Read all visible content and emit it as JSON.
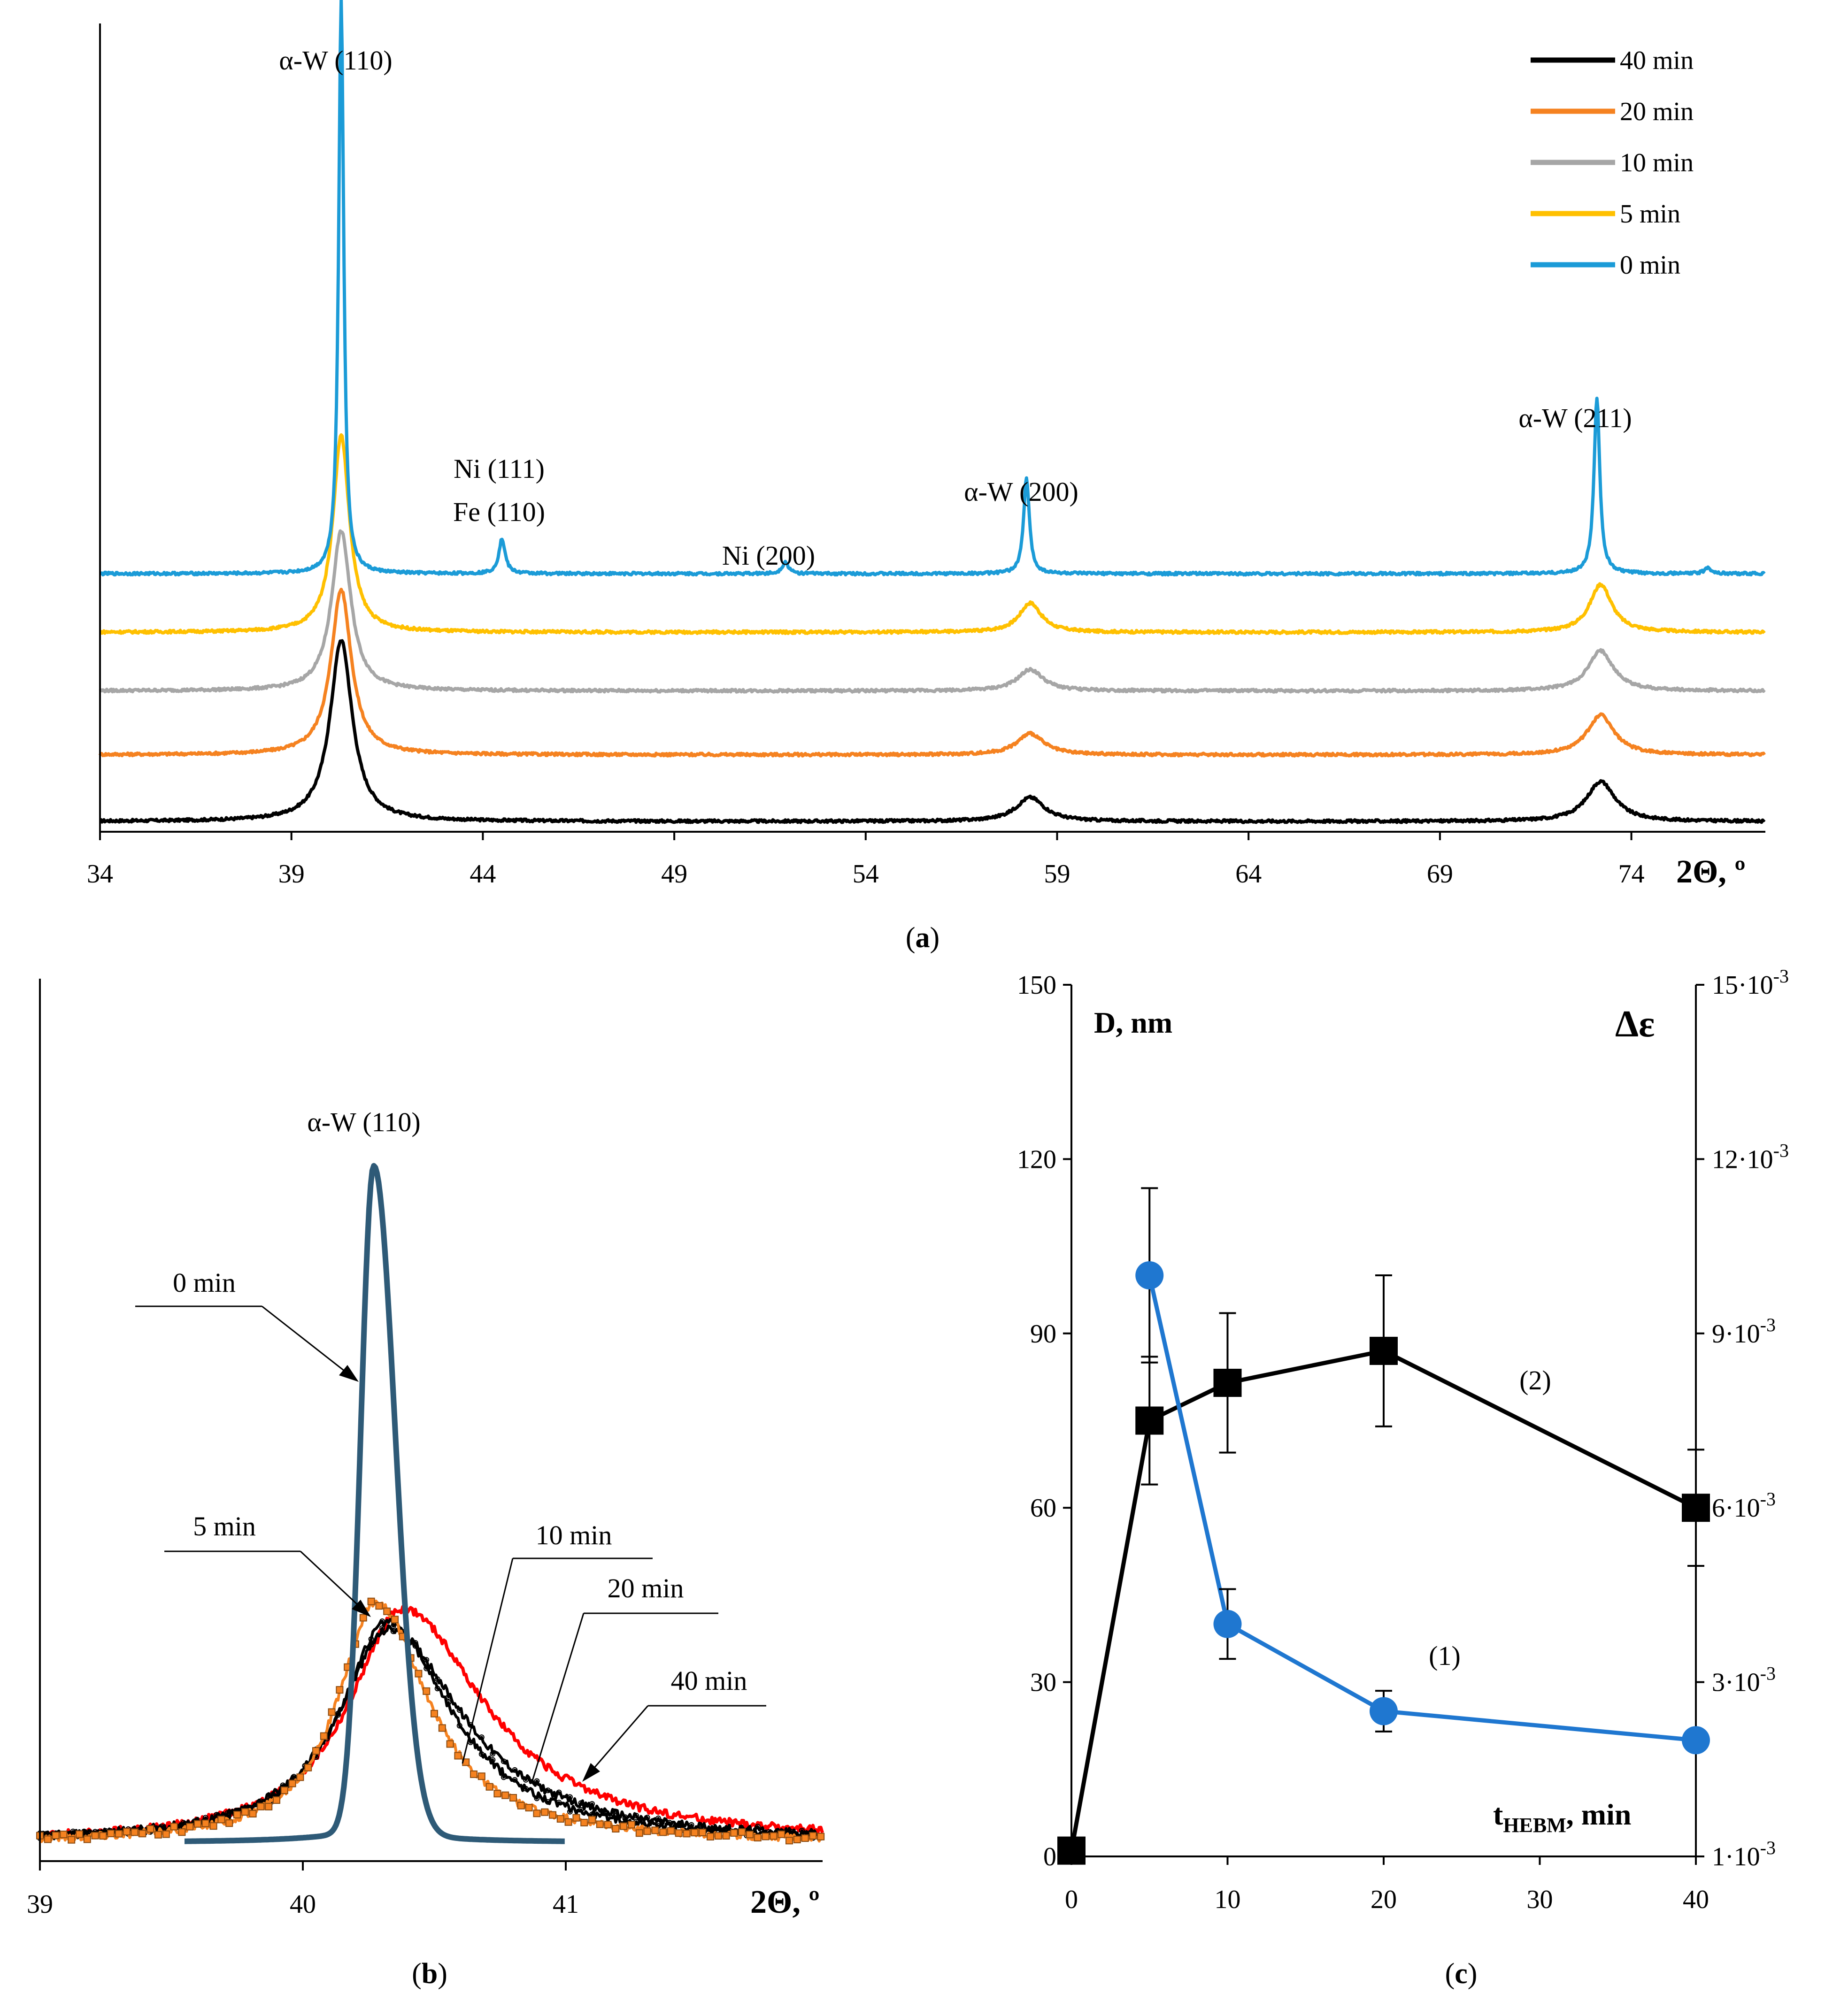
{
  "chart_data": [
    {
      "id": "a",
      "type": "line",
      "caption": "(a)",
      "xlabel": "2Θ, º",
      "xlim": [
        34,
        77.5
      ],
      "x_ticks": [
        "34",
        "39",
        "44",
        "49",
        "54",
        "59",
        "64",
        "69",
        "74"
      ],
      "y_axis": "stacked offsets, no ticks",
      "legend": [
        "40 min",
        "20 min",
        "10 min",
        "5 min",
        "0 min"
      ],
      "legend_position": "top-right",
      "series": [
        {
          "name": "40 min",
          "color": "#000000",
          "baseline": 0.0,
          "peaks": [
            [
              40.3,
              3.4,
              0.35
            ],
            [
              58.3,
              0.45,
              0.45
            ],
            [
              73.2,
              0.75,
              0.45
            ]
          ]
        },
        {
          "name": "20 min",
          "color": "#f58220",
          "baseline": 1.25,
          "peaks": [
            [
              40.3,
              3.1,
              0.32
            ],
            [
              58.3,
              0.4,
              0.42
            ],
            [
              73.2,
              0.75,
              0.42
            ]
          ]
        },
        {
          "name": "10 min",
          "color": "#a6a6a6",
          "baseline": 2.45,
          "peaks": [
            [
              40.3,
              3.0,
              0.3
            ],
            [
              58.3,
              0.4,
              0.4
            ],
            [
              73.2,
              0.75,
              0.4
            ]
          ]
        },
        {
          "name": "5 min",
          "color": "#ffc000",
          "baseline": 3.55,
          "peaks": [
            [
              40.3,
              3.7,
              0.26
            ],
            [
              58.3,
              0.55,
              0.35
            ],
            [
              73.2,
              0.9,
              0.35
            ]
          ]
        },
        {
          "name": "0 min",
          "color": "#1b9bd7",
          "baseline": 4.65,
          "peaks": [
            [
              40.3,
              10.8,
              0.08
            ],
            [
              44.5,
              0.65,
              0.1
            ],
            [
              51.9,
              0.22,
              0.1
            ],
            [
              58.2,
              1.8,
              0.09
            ],
            [
              73.1,
              3.3,
              0.09
            ],
            [
              76.0,
              0.12,
              0.1
            ]
          ]
        }
      ],
      "annotations": [
        "α-W (110)",
        "Ni (111)",
        "Fe (110)",
        "Ni (200)",
        "α-W (200)",
        "α-W (211)"
      ]
    },
    {
      "id": "b",
      "type": "line",
      "caption": "(b)",
      "xlabel": "2Θ, º",
      "xlim": [
        39,
        42
      ],
      "x_ticks": [
        "39",
        "40",
        "41"
      ],
      "peak_label": "α-W (110)",
      "series": [
        {
          "name": "0 min",
          "color": "#2e5a77",
          "x_range": [
            39.55,
            41.0
          ],
          "peak_x": 40.27,
          "height": 1.0,
          "hwhm_left": 0.055,
          "hwhm_right": 0.09
        },
        {
          "name": "5 min",
          "color": "#f58220",
          "marker": "square",
          "x_range": [
            39,
            42
          ],
          "peak_x": 40.28,
          "height": 0.36,
          "hwhm_left": 0.18,
          "hwhm_right": 0.24
        },
        {
          "name": "10 min",
          "color": "#000000",
          "x_range": [
            39,
            42
          ],
          "peak_x": 40.32,
          "height": 0.33,
          "hwhm_left": 0.22,
          "hwhm_right": 0.3
        },
        {
          "name": "20 min",
          "color": "#000000",
          "x_range": [
            39,
            42
          ],
          "peak_x": 40.33,
          "height": 0.32,
          "hwhm_left": 0.24,
          "hwhm_right": 0.34
        },
        {
          "name": "40 min",
          "color": "#ff0000",
          "x_range": [
            39,
            42
          ],
          "peak_x": 40.38,
          "height": 0.35,
          "hwhm_left": 0.25,
          "hwhm_right": 0.38
        }
      ],
      "labels": [
        "0 min",
        "5 min",
        "10 min",
        "20 min",
        "40 min"
      ]
    },
    {
      "id": "c",
      "type": "scatter",
      "caption": "(c)",
      "xlabel_main": "t",
      "xlabel_sub": "HEBM",
      "xlabel_rest": ", min",
      "ylabel_left": "D, nm",
      "ylabel_right": "Δε",
      "xlim": [
        0,
        40
      ],
      "ylim_left": [
        0,
        150
      ],
      "x_ticks": [
        "0",
        "10",
        "20",
        "30",
        "40"
      ],
      "y_ticks_left": [
        "0",
        "30",
        "60",
        "90",
        "120",
        "150"
      ],
      "y_ticks_right": [
        "1·10",
        "3·10",
        "6·10",
        "9·10",
        "12·10",
        "15·10"
      ],
      "y_ticks_right_exp": "-3",
      "series": [
        {
          "name": "(1)",
          "axis": "left",
          "color": "#1f77d0",
          "marker": "circle",
          "x": [
            5,
            10,
            20,
            40
          ],
          "y": [
            100,
            40,
            25,
            20
          ],
          "err": [
            15,
            6,
            3.5,
            0
          ]
        },
        {
          "name": "(2)",
          "axis": "right",
          "color": "#000000",
          "marker": "square",
          "x": [
            0,
            5,
            10,
            20,
            40
          ],
          "y": [
            1,
            75,
            81.5,
            87,
            60
          ],
          "err": [
            0,
            11,
            12,
            13,
            10
          ]
        }
      ]
    }
  ]
}
